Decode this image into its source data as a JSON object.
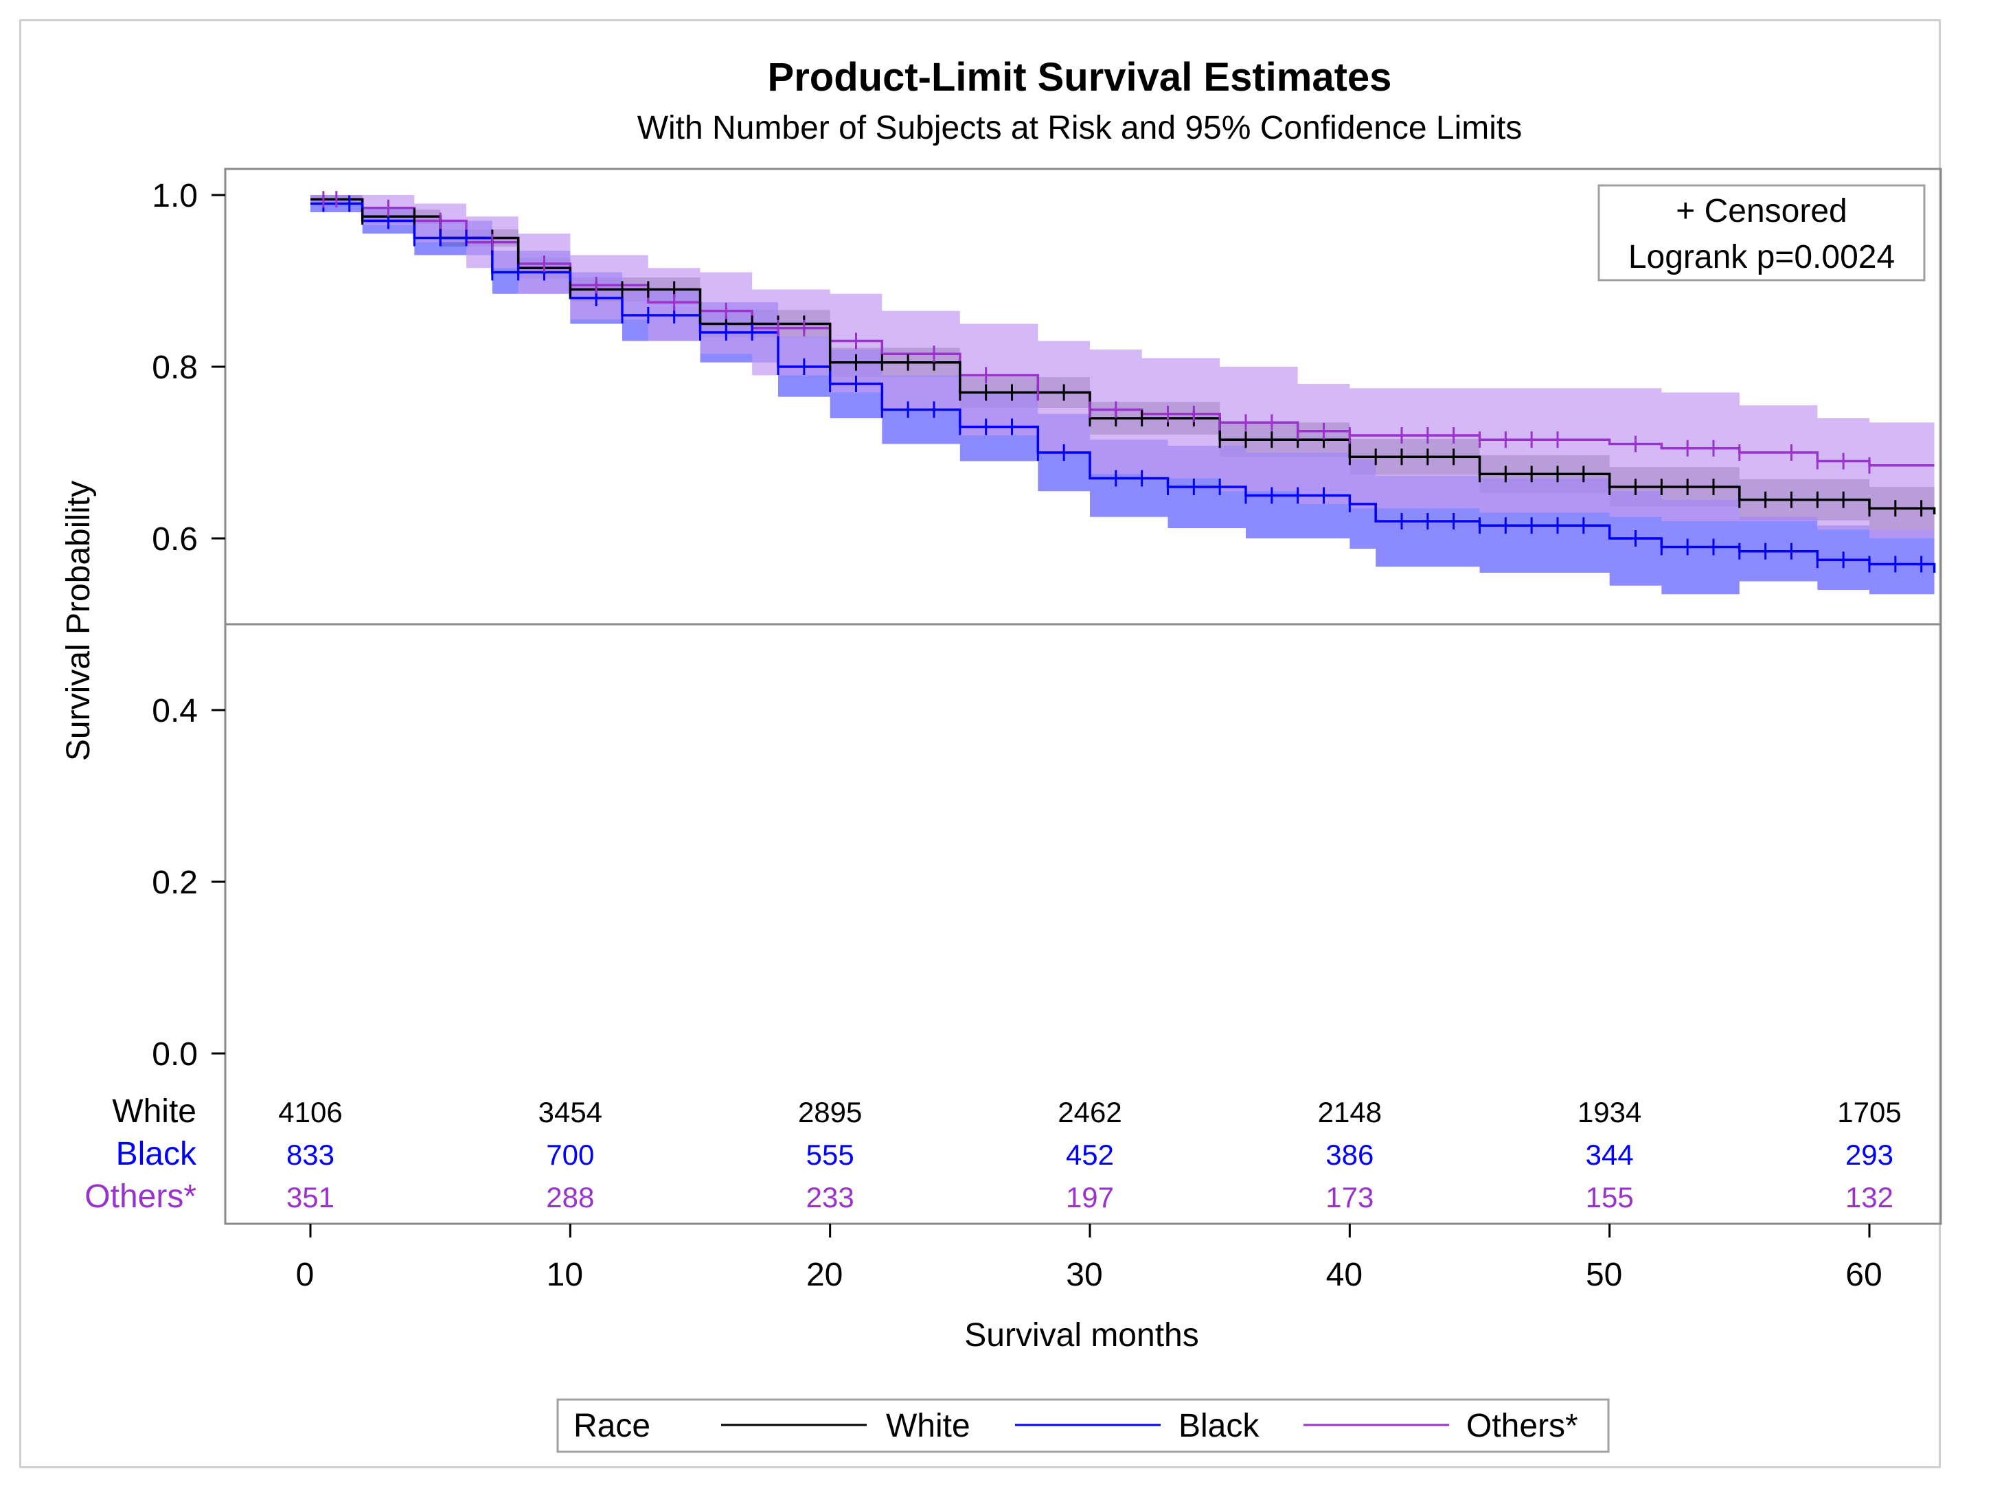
{
  "chart_data": {
    "type": "line",
    "title": "Product-Limit Survival Estimates",
    "subtitle": "With Number of Subjects at Risk and 95% Confidence Limits",
    "xlabel": "Survival months",
    "ylabel": "Survival Probability",
    "xlim": [
      -3,
      63
    ],
    "ylim": [
      0,
      1
    ],
    "x_ticks": [
      0,
      10,
      20,
      30,
      40,
      50,
      60
    ],
    "y_ticks": [
      "0.0",
      "0.2",
      "0.4",
      "0.6",
      "0.8",
      "1.0"
    ],
    "reference_line_y": 0.5,
    "grid": false,
    "inset_box": {
      "line1": "+ Censored",
      "line2": "Logrank p=0.0024"
    },
    "legend": {
      "position": "bottom",
      "title": "Race",
      "items": [
        "White",
        "Black",
        "Others*"
      ]
    },
    "series": [
      {
        "name": "White",
        "color": "#000000",
        "band_color": "#808080",
        "x": [
          0,
          2,
          5,
          8,
          10,
          15,
          20,
          25,
          30,
          35,
          40,
          45,
          50,
          55,
          60,
          62.5
        ],
        "y": [
          0.995,
          0.975,
          0.95,
          0.915,
          0.89,
          0.85,
          0.805,
          0.77,
          0.74,
          0.715,
          0.695,
          0.675,
          0.66,
          0.645,
          0.635,
          0.628
        ],
        "lower": [
          0.99,
          0.967,
          0.94,
          0.903,
          0.876,
          0.834,
          0.788,
          0.752,
          0.721,
          0.695,
          0.674,
          0.653,
          0.637,
          0.621,
          0.61,
          0.602
        ],
        "upper": [
          1.0,
          0.983,
          0.96,
          0.927,
          0.904,
          0.866,
          0.822,
          0.788,
          0.759,
          0.735,
          0.716,
          0.697,
          0.683,
          0.669,
          0.66,
          0.654
        ],
        "censor_x": [
          2,
          3,
          4,
          5,
          6,
          7,
          8,
          9,
          10,
          11,
          12,
          13,
          14,
          15,
          16,
          17,
          18,
          19,
          20,
          21,
          22,
          23,
          24,
          25,
          26,
          27,
          28,
          29,
          30,
          31,
          32,
          33,
          34,
          35,
          36,
          37,
          38,
          39,
          40,
          41,
          42,
          43,
          44,
          45,
          46,
          47,
          48,
          49,
          50,
          51,
          52,
          53,
          54,
          55,
          56,
          57,
          58,
          59,
          60,
          61,
          62
        ]
      },
      {
        "name": "Black",
        "color": "#0000ff",
        "band_color": "#5a5aff",
        "x": [
          0,
          2,
          4,
          7,
          10,
          12,
          15,
          18,
          20,
          22,
          25,
          28,
          30,
          33,
          36,
          40,
          41,
          45,
          50,
          52,
          55,
          58,
          60,
          62.5
        ],
        "y": [
          0.99,
          0.97,
          0.95,
          0.91,
          0.88,
          0.86,
          0.84,
          0.8,
          0.78,
          0.75,
          0.73,
          0.7,
          0.67,
          0.66,
          0.65,
          0.64,
          0.62,
          0.615,
          0.6,
          0.59,
          0.585,
          0.575,
          0.57,
          0.56
        ],
        "lower": [
          0.98,
          0.955,
          0.93,
          0.885,
          0.85,
          0.83,
          0.805,
          0.765,
          0.74,
          0.71,
          0.69,
          0.655,
          0.625,
          0.612,
          0.6,
          0.588,
          0.567,
          0.56,
          0.545,
          0.535,
          0.55,
          0.54,
          0.535,
          0.53
        ],
        "upper": [
          1.0,
          0.985,
          0.97,
          0.935,
          0.91,
          0.89,
          0.875,
          0.835,
          0.82,
          0.79,
          0.77,
          0.745,
          0.715,
          0.708,
          0.7,
          0.692,
          0.673,
          0.67,
          0.655,
          0.645,
          0.625,
          0.615,
          0.61,
          0.6
        ],
        "censor_x": [
          0.5,
          1.5,
          3,
          4,
          5,
          6,
          7,
          8,
          9,
          11,
          12,
          13,
          14,
          15,
          16,
          17,
          18,
          19,
          20,
          21,
          22,
          23,
          24,
          25,
          26,
          27,
          28,
          29,
          31,
          32,
          33,
          34,
          35,
          36,
          37,
          38,
          39,
          40,
          42,
          43,
          44,
          45,
          46,
          47,
          48,
          49,
          51,
          52,
          53,
          54,
          55,
          56,
          57,
          58,
          59,
          60,
          61,
          62
        ]
      },
      {
        "name": "Others*",
        "color": "#9933cc",
        "band_color": "#c39bf2",
        "x": [
          0,
          2,
          4,
          6,
          8,
          10,
          13,
          15,
          17,
          20,
          22,
          25,
          28,
          30,
          32,
          35,
          38,
          40,
          45,
          50,
          52,
          55,
          58,
          60,
          62.5
        ],
        "y": [
          0.995,
          0.985,
          0.97,
          0.945,
          0.92,
          0.895,
          0.875,
          0.865,
          0.845,
          0.83,
          0.815,
          0.79,
          0.77,
          0.75,
          0.745,
          0.735,
          0.725,
          0.72,
          0.715,
          0.71,
          0.705,
          0.7,
          0.69,
          0.685,
          0.685
        ],
        "lower": [
          0.99,
          0.965,
          0.945,
          0.915,
          0.885,
          0.855,
          0.83,
          0.815,
          0.79,
          0.77,
          0.75,
          0.72,
          0.7,
          0.675,
          0.67,
          0.655,
          0.64,
          0.635,
          0.63,
          0.625,
          0.62,
          0.62,
          0.61,
          0.6,
          0.595
        ],
        "upper": [
          1.0,
          1.0,
          0.99,
          0.975,
          0.955,
          0.93,
          0.915,
          0.91,
          0.89,
          0.885,
          0.865,
          0.85,
          0.83,
          0.82,
          0.81,
          0.8,
          0.78,
          0.775,
          0.775,
          0.775,
          0.77,
          0.755,
          0.74,
          0.735,
          0.735
        ],
        "censor_x": [
          0.5,
          1,
          3,
          5,
          7,
          9,
          11,
          14,
          16,
          18,
          19,
          21,
          24,
          26,
          28,
          30,
          31,
          33,
          34,
          35,
          36,
          37,
          38,
          39,
          40,
          42,
          43,
          44,
          45,
          46,
          47,
          48,
          51,
          53,
          54,
          55,
          57,
          58,
          59,
          60
        ]
      }
    ],
    "at_risk": {
      "times": [
        0,
        10,
        20,
        30,
        40,
        50,
        60
      ],
      "rows": [
        {
          "label": "White",
          "values": [
            "4106",
            "3454",
            "2895",
            "2462",
            "2148",
            "1934",
            "1705"
          ]
        },
        {
          "label": "Black",
          "values": [
            "833",
            "700",
            "555",
            "452",
            "386",
            "344",
            "293"
          ]
        },
        {
          "label": "Others*",
          "values": [
            "351",
            "288",
            "233",
            "197",
            "173",
            "155",
            "132"
          ]
        }
      ]
    }
  }
}
